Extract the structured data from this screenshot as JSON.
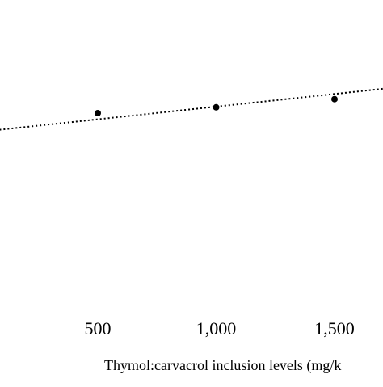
{
  "chart_data": {
    "type": "scatter",
    "title": "",
    "xlabel": "Thymol:carvacrol inclusion levels (mg/k",
    "ylabel": "",
    "x_ticks": [
      {
        "value": 500,
        "label": "500"
      },
      {
        "value": 1000,
        "label": "1,000"
      },
      {
        "value": 1500,
        "label": "1,500"
      }
    ],
    "series": [
      {
        "x": [
          500,
          1000,
          1500
        ],
        "y": [
          0.5,
          0.65,
          0.86
        ],
        "marker": "circle",
        "color": "#000000"
      }
    ],
    "trendline": {
      "style": "dotted",
      "color": "#000000",
      "x_start": 85,
      "x_end": 1770,
      "y_start": 0.07,
      "y_end": 1.17
    },
    "grid": false,
    "legend": "none"
  }
}
